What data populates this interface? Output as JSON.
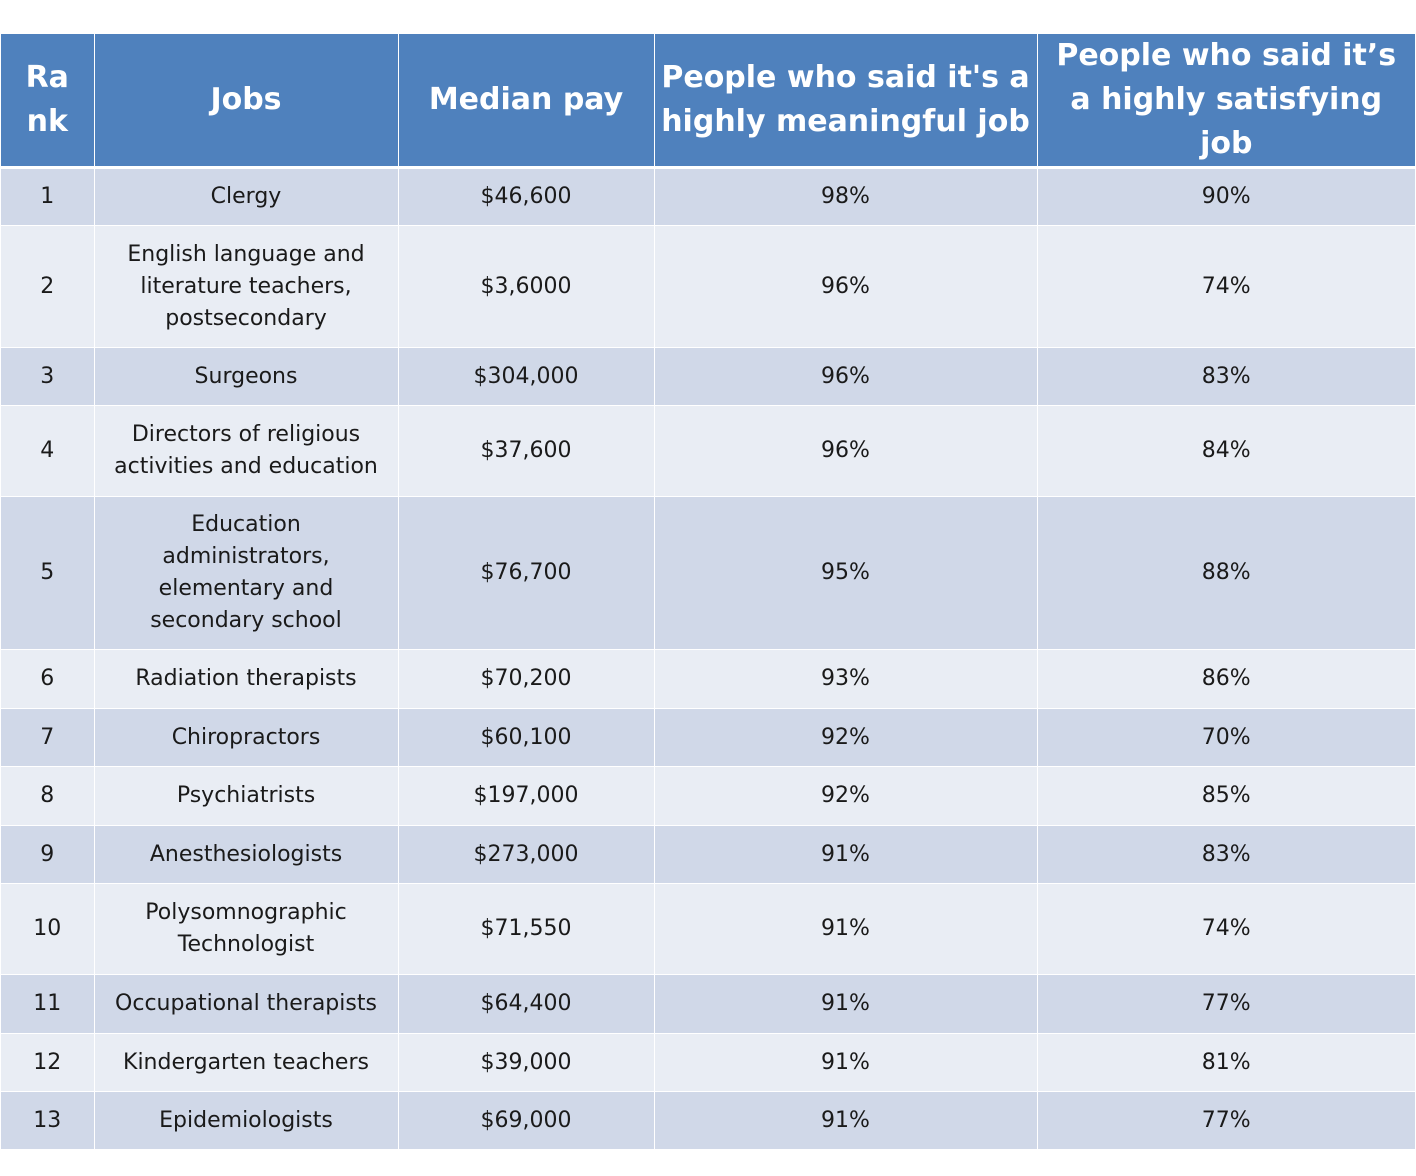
{
  "chart_data": {
    "type": "table",
    "columns": [
      "Rank",
      "Jobs",
      "Median pay",
      "People who said it's a highly meaningful job",
      "People who said it’s a highly satisfying job"
    ],
    "header_display": {
      "rank": "Ra nk",
      "jobs": "Jobs",
      "pay": "Median pay",
      "meaningful": "People who said it's a highly meaningful job",
      "satisfying": "People who said it’s a highly satisfying job"
    },
    "rows": [
      {
        "rank": "1",
        "job": "Clergy",
        "pay": "$46,600",
        "meaningful": "98%",
        "satisfying": "90%"
      },
      {
        "rank": "2",
        "job": "English language and literature teachers, postsecondary",
        "pay": "$3,6000",
        "meaningful": "96%",
        "satisfying": "74%"
      },
      {
        "rank": "3",
        "job": "Surgeons",
        "pay": "$304,000",
        "meaningful": "96%",
        "satisfying": "83%"
      },
      {
        "rank": "4",
        "job": "Directors of religious activities and education",
        "pay": "$37,600",
        "meaningful": "96%",
        "satisfying": "84%"
      },
      {
        "rank": "5",
        "job": "Education administrators, elementary and secondary school",
        "pay": "$76,700",
        "meaningful": "95%",
        "satisfying": "88%"
      },
      {
        "rank": "6",
        "job": "Radiation therapists",
        "pay": "$70,200",
        "meaningful": "93%",
        "satisfying": "86%"
      },
      {
        "rank": "7",
        "job": "Chiropractors",
        "pay": "$60,100",
        "meaningful": "92%",
        "satisfying": "70%"
      },
      {
        "rank": "8",
        "job": "Psychiatrists",
        "pay": "$197,000",
        "meaningful": "92%",
        "satisfying": "85%"
      },
      {
        "rank": "9",
        "job": "Anesthesiologists",
        "pay": "$273,000",
        "meaningful": "91%",
        "satisfying": "83%"
      },
      {
        "rank": "10",
        "job": "Polysomnographic Technologist",
        "pay": "$71,550",
        "meaningful": "91%",
        "satisfying": "74%"
      },
      {
        "rank": "11",
        "job": "Occupational therapists",
        "pay": "$64,400",
        "meaningful": "91%",
        "satisfying": "77%"
      },
      {
        "rank": "12",
        "job": "Kindergarten teachers",
        "pay": "$39,000",
        "meaningful": "91%",
        "satisfying": "81%"
      },
      {
        "rank": "13",
        "job": "Epidemiologists",
        "pay": "$69,000",
        "meaningful": "91%",
        "satisfying": "77%"
      }
    ]
  },
  "colors": {
    "header_bg": "#4f81bd",
    "header_text": "#ffffff",
    "row_band_dark": "#d0d8e8",
    "row_band_light": "#e9edf4"
  }
}
